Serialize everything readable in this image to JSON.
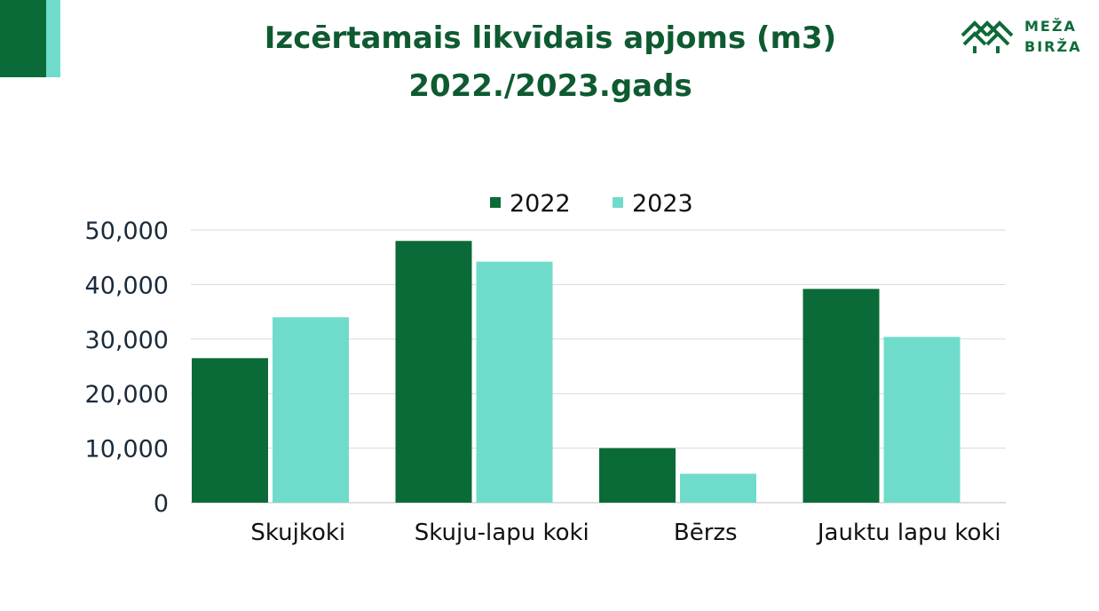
{
  "header": {
    "title_line1": "Izcērtamais likvīdais apjoms (m3)",
    "title_line2": "2022./2023.gads",
    "logo_line1": "MEŽA",
    "logo_line2": "BIRŽA"
  },
  "colors": {
    "series_2022": "#0b6b38",
    "series_2023": "#6fdccb",
    "title": "#0e5a31",
    "grid": "#d9d9d9"
  },
  "chart_data": {
    "type": "bar",
    "title": "Izcērtamais likvīdais apjoms (m3) 2022./2023.gads",
    "categories": [
      "Skujkoki",
      "Skuju-lapu koki",
      "Bērzs",
      "Jauktu lapu koki"
    ],
    "series": [
      {
        "name": "2022",
        "values": [
          26500,
          48000,
          10000,
          39200
        ]
      },
      {
        "name": "2023",
        "values": [
          34000,
          44200,
          5300,
          30400
        ]
      }
    ],
    "ylim": [
      0,
      50000
    ],
    "yticks": [
      0,
      10000,
      20000,
      30000,
      40000,
      50000
    ],
    "ytick_labels": [
      "0",
      "10,000",
      "20,000",
      "30,000",
      "40,000",
      "50,000"
    ],
    "xlabel": "",
    "ylabel": "",
    "grid": true,
    "legend_position": "top-center"
  }
}
